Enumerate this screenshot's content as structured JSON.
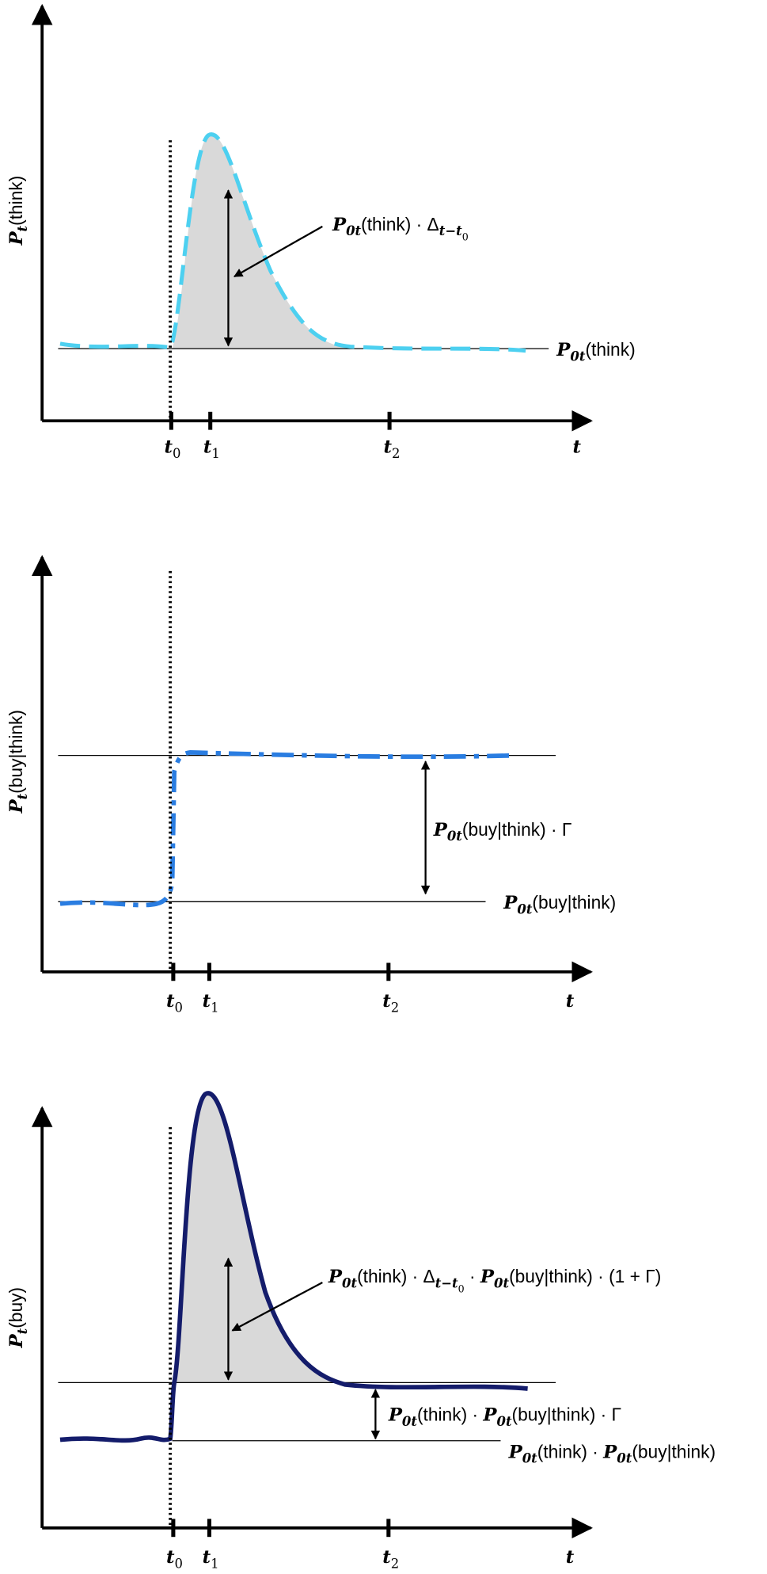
{
  "panels": [
    {
      "y_label": [
        {
          "text": "P",
          "math": true
        },
        {
          "text": "t",
          "math": true,
          "sub": 1
        },
        {
          "text": "(think)"
        }
      ],
      "x_label": [
        {
          "text": "t",
          "math": true
        }
      ],
      "ticks": [
        [
          {
            "text": "t",
            "math": true
          },
          {
            "text": "0",
            "sub": 1
          }
        ],
        [
          {
            "text": "t",
            "math": true
          },
          {
            "text": "1",
            "sub": 1
          }
        ],
        [
          {
            "text": "t",
            "math": true
          },
          {
            "text": "2",
            "sub": 1
          }
        ]
      ],
      "annotations": [
        [
          {
            "text": "P",
            "math": true
          },
          {
            "text": "0t",
            "math": true,
            "sub": 1
          },
          {
            "text": "(think) · Δ"
          },
          {
            "text": "t−t",
            "math": true,
            "sub": 1
          },
          {
            "text": "0",
            "sub": 2
          }
        ],
        [
          {
            "text": "P",
            "math": true
          },
          {
            "text": "0t",
            "math": true,
            "sub": 1
          },
          {
            "text": "(think)"
          }
        ]
      ]
    },
    {
      "y_label": [
        {
          "text": "P",
          "math": true
        },
        {
          "text": "t",
          "math": true,
          "sub": 1
        },
        {
          "text": "(buy|think)"
        }
      ],
      "x_label": [
        {
          "text": "t",
          "math": true
        }
      ],
      "ticks": [
        [
          {
            "text": "t",
            "math": true
          },
          {
            "text": "0",
            "sub": 1
          }
        ],
        [
          {
            "text": "t",
            "math": true
          },
          {
            "text": "1",
            "sub": 1
          }
        ],
        [
          {
            "text": "t",
            "math": true
          },
          {
            "text": "2",
            "sub": 1
          }
        ]
      ],
      "annotations": [
        [
          {
            "text": "P",
            "math": true
          },
          {
            "text": "0t",
            "math": true,
            "sub": 1
          },
          {
            "text": "(buy|think) · Γ"
          }
        ],
        [
          {
            "text": "P",
            "math": true
          },
          {
            "text": "0t",
            "math": true,
            "sub": 1
          },
          {
            "text": "(buy|think)"
          }
        ]
      ]
    },
    {
      "y_label": [
        {
          "text": "P",
          "math": true
        },
        {
          "text": "t",
          "math": true,
          "sub": 1
        },
        {
          "text": "(buy)"
        }
      ],
      "x_label": [
        {
          "text": "t",
          "math": true
        }
      ],
      "ticks": [
        [
          {
            "text": "t",
            "math": true
          },
          {
            "text": "0",
            "sub": 1
          }
        ],
        [
          {
            "text": "t",
            "math": true
          },
          {
            "text": "1",
            "sub": 1
          }
        ],
        [
          {
            "text": "t",
            "math": true
          },
          {
            "text": "2",
            "sub": 1
          }
        ]
      ],
      "annotations": [
        [
          {
            "text": "P",
            "math": true
          },
          {
            "text": "0t",
            "math": true,
            "sub": 1
          },
          {
            "text": "(think) · Δ"
          },
          {
            "text": "t−t",
            "math": true,
            "sub": 1
          },
          {
            "text": "0",
            "sub": 2
          },
          {
            "text": " · "
          },
          {
            "text": "P",
            "math": true
          },
          {
            "text": "0t",
            "math": true,
            "sub": 1
          },
          {
            "text": "(buy|think) · (1 + Γ)"
          }
        ],
        [
          {
            "text": "P",
            "math": true
          },
          {
            "text": "0t",
            "math": true,
            "sub": 1
          },
          {
            "text": "(think) · "
          },
          {
            "text": "P",
            "math": true
          },
          {
            "text": "0t",
            "math": true,
            "sub": 1
          },
          {
            "text": "(buy|think) · Γ"
          }
        ],
        [
          {
            "text": "P",
            "math": true
          },
          {
            "text": "0t",
            "math": true,
            "sub": 1
          },
          {
            "text": "(think) · "
          },
          {
            "text": "P",
            "math": true
          },
          {
            "text": "0t",
            "math": true,
            "sub": 1
          },
          {
            "text": "(buy|think)"
          }
        ]
      ]
    }
  ]
}
